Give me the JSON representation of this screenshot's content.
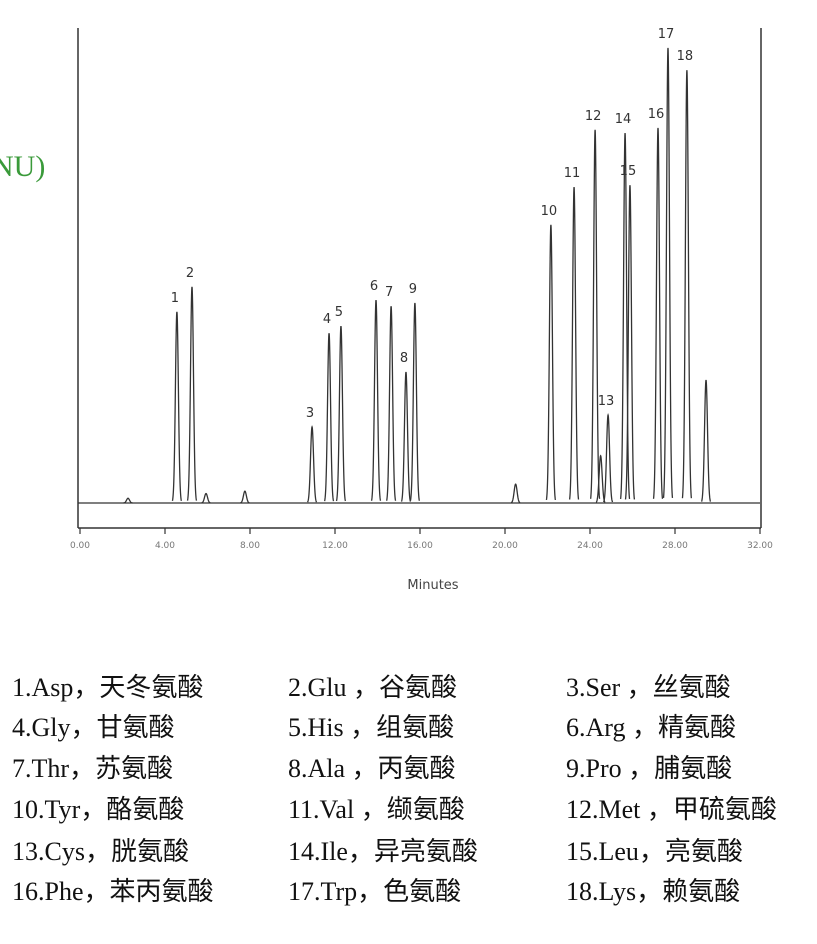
{
  "chart_data": {
    "type": "chromatogram",
    "y_label": "NU)",
    "x_label": "Minutes",
    "xlim": [
      0,
      32
    ],
    "ylim": [
      0,
      100
    ],
    "xticks": [
      {
        "value": 0,
        "label": "0.00"
      },
      {
        "value": 4,
        "label": "4.00"
      },
      {
        "value": 8,
        "label": "8.00"
      },
      {
        "value": 12,
        "label": "12.00"
      },
      {
        "value": 16,
        "label": "16.00"
      },
      {
        "value": 20,
        "label": "20.00"
      },
      {
        "value": 24,
        "label": "24.00"
      },
      {
        "value": 28,
        "label": "28.00"
      },
      {
        "value": 32,
        "label": "32.00"
      }
    ],
    "color": "#333333",
    "peaks": {
      "labels": [
        null,
        "1",
        "2",
        null,
        null,
        "3",
        "4",
        "5",
        "6",
        "7",
        "8",
        "9",
        null,
        "10",
        "11",
        "12",
        null,
        "13",
        "14",
        "15",
        "16",
        "17",
        "18",
        null
      ],
      "times": [
        2.26,
        4.56,
        5.27,
        5.93,
        7.76,
        10.92,
        11.72,
        12.28,
        13.93,
        14.64,
        15.34,
        15.76,
        20.5,
        22.16,
        23.25,
        24.24,
        24.5,
        24.85,
        25.65,
        25.88,
        27.2,
        27.67,
        28.56,
        29.46
      ],
      "heights": [
        1,
        40.4,
        45.7,
        2,
        2.5,
        16.1,
        35.9,
        37.4,
        42.9,
        41.6,
        27.7,
        42.3,
        4,
        58.8,
        66.8,
        78.9,
        10,
        18.6,
        78.2,
        67.2,
        79.3,
        96.2,
        91.5,
        26
      ]
    }
  },
  "legend_list": [
    "1.Asp，天冬氨酸",
    "2.Glu ，谷氨酸",
    "3.Ser ，丝氨酸",
    "4.Gly，甘氨酸",
    "5.His ，组氨酸",
    "6.Arg ，精氨酸",
    "7.Thr，苏氨酸",
    "8.Ala ，丙氨酸",
    "9.Pro ，脯氨酸",
    "10.Tyr，酪氨酸",
    "11.Val ，缬氨酸",
    "12.Met ，甲硫氨酸",
    "13.Cys，胱氨酸",
    "14.Ile，异亮氨酸",
    "15.Leu，亮氨酸",
    "16.Phe，苯丙氨酸",
    "17.Trp，色氨酸",
    "18.Lys，赖氨酸"
  ]
}
